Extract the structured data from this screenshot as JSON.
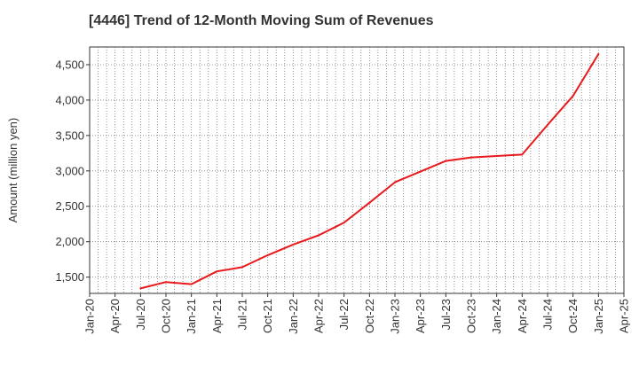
{
  "chart_data": {
    "type": "line",
    "title": "[4446]  Trend of 12-Month Moving Sum of Revenues",
    "xlabel": "",
    "ylabel": "Amount (million yen)",
    "x_ticks": [
      "Jan-20",
      "Apr-20",
      "Jul-20",
      "Oct-20",
      "Jan-21",
      "Apr-21",
      "Jul-21",
      "Oct-21",
      "Jan-22",
      "Apr-22",
      "Jul-22",
      "Oct-22",
      "Jan-23",
      "Apr-23",
      "Jul-23",
      "Oct-23",
      "Jan-24",
      "Apr-24",
      "Jul-24",
      "Oct-24",
      "Jan-25",
      "Apr-25"
    ],
    "y_ticks": [
      1500,
      2000,
      2500,
      3000,
      3500,
      4000,
      4500
    ],
    "y_tick_labels": [
      "1,500",
      "2,000",
      "2,500",
      "3,000",
      "3,500",
      "4,000",
      "4,500"
    ],
    "ylim": [
      1270,
      4750
    ],
    "grid": true,
    "series": [
      {
        "color": "#e8191c",
        "x": [
          "Jul-20",
          "Oct-20",
          "Jan-21",
          "Apr-21",
          "Jul-21",
          "Oct-21",
          "Jan-22",
          "Apr-22",
          "Jul-22",
          "Oct-22",
          "Jan-23",
          "Apr-23",
          "Jul-23",
          "Oct-23",
          "Jan-24",
          "Apr-24",
          "Jul-24",
          "Oct-24",
          "Jan-25"
        ],
        "values": [
          1340,
          1430,
          1400,
          1580,
          1640,
          1810,
          1960,
          2090,
          2270,
          2550,
          2840,
          2990,
          3140,
          3190,
          3210,
          3230,
          3650,
          4060,
          4650
        ]
      }
    ]
  }
}
